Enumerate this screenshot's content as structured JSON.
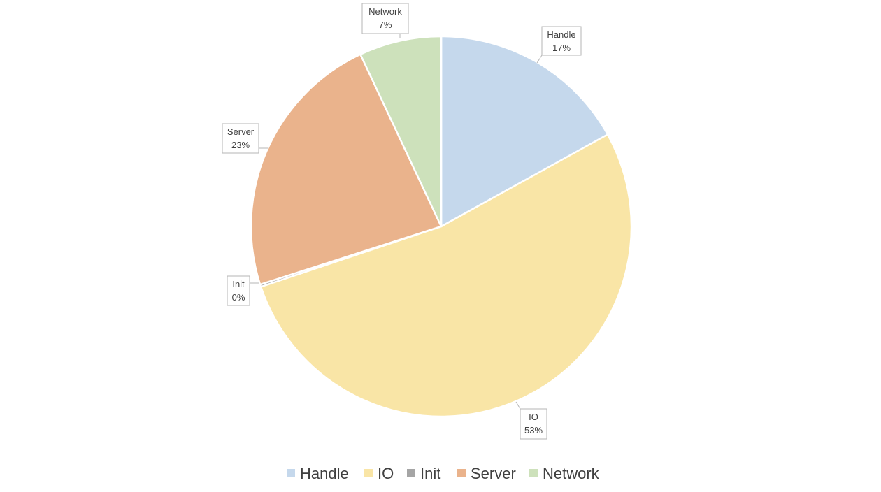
{
  "chart_data": {
    "type": "pie",
    "title": "",
    "categories": [
      "Handle",
      "IO",
      "Init",
      "Server",
      "Network"
    ],
    "values": [
      17,
      53,
      0.2,
      23,
      7
    ],
    "data_labels": [
      "17%",
      "53%",
      "0%",
      "23%",
      "7%"
    ],
    "colors": [
      "#c5d8ec",
      "#f9e5a6",
      "#a5a5a5",
      "#eab38c",
      "#cde1bb"
    ],
    "start_angle_deg": 0,
    "direction": "clockwise",
    "legend": {
      "position": "bottom",
      "entries": [
        "Handle",
        "IO",
        "Init",
        "Server",
        "Network"
      ]
    }
  }
}
